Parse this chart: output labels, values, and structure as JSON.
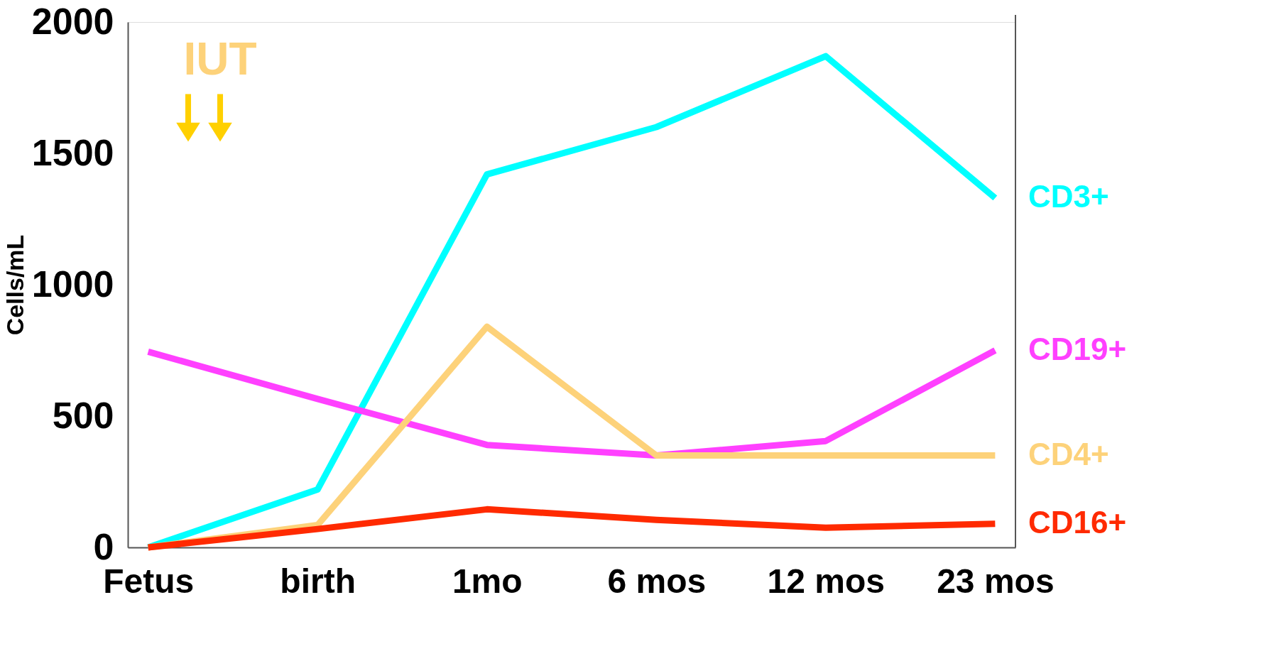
{
  "chart_data": {
    "type": "line",
    "ylabel": "Cells/mL",
    "categories": [
      "Fetus",
      "birth",
      "1mo",
      "6 mos",
      "12 mos",
      "23 mos"
    ],
    "ylim": [
      0,
      2000
    ],
    "yticks": [
      0,
      500,
      1000,
      1500,
      2000
    ],
    "grid": false,
    "marker": "none",
    "line_style": "solid",
    "annotations": [
      "IUT"
    ],
    "series": [
      {
        "name": "CD3+",
        "color": "#00ffff",
        "values": [
          0,
          220,
          1420,
          1600,
          1870,
          1330
        ]
      },
      {
        "name": "CD19+",
        "color": "#ff40ff",
        "values": [
          745,
          565,
          390,
          350,
          405,
          750
        ]
      },
      {
        "name": "CD4+",
        "color": "#fdd27a",
        "values": [
          0,
          85,
          840,
          350,
          350,
          350
        ]
      },
      {
        "name": "CD16+",
        "color": "#ff2a00",
        "values": [
          0,
          70,
          145,
          105,
          75,
          90
        ]
      }
    ]
  }
}
